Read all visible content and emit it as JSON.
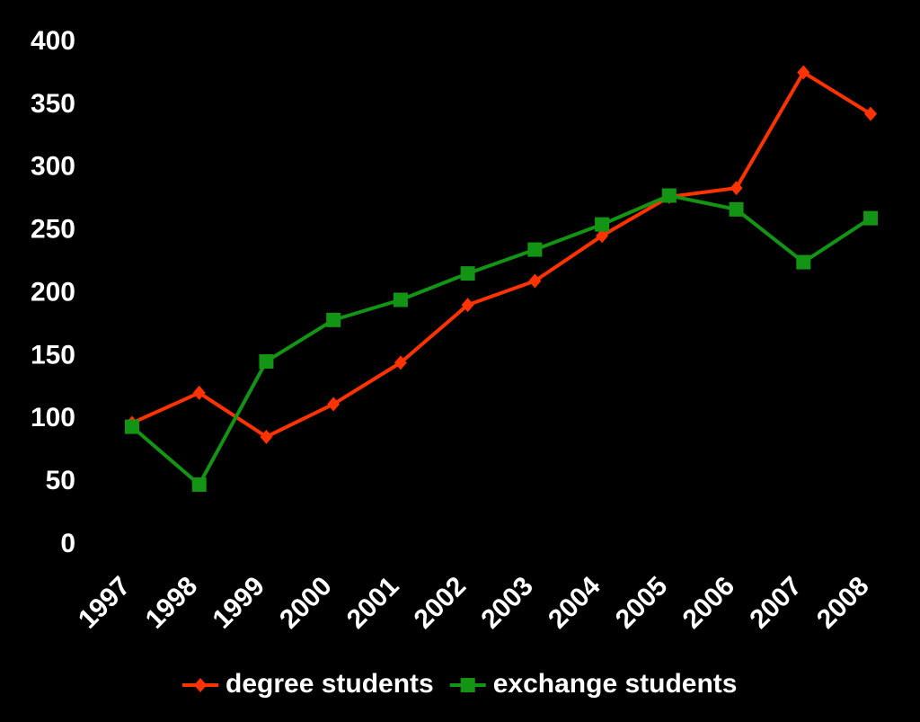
{
  "chart_data": {
    "type": "line",
    "categories": [
      "1997",
      "1998",
      "1999",
      "2000",
      "2001",
      "2002",
      "2003",
      "2004",
      "2005",
      "2006",
      "2007",
      "2008"
    ],
    "series": [
      {
        "name": "degree students",
        "color": "#ff3300",
        "marker": "diamond",
        "values": [
          97,
          121,
          86,
          112,
          145,
          191,
          210,
          246,
          277,
          284,
          376,
          343
        ]
      },
      {
        "name": "exchange students",
        "color": "#149414",
        "marker": "square",
        "values": [
          94,
          48,
          146,
          179,
          195,
          216,
          235,
          255,
          278,
          267,
          225,
          260
        ]
      }
    ],
    "ylim": [
      0,
      400
    ],
    "yticks": [
      0,
      50,
      100,
      150,
      200,
      250,
      300,
      350,
      400
    ],
    "grid": false,
    "legend": "bottom"
  }
}
